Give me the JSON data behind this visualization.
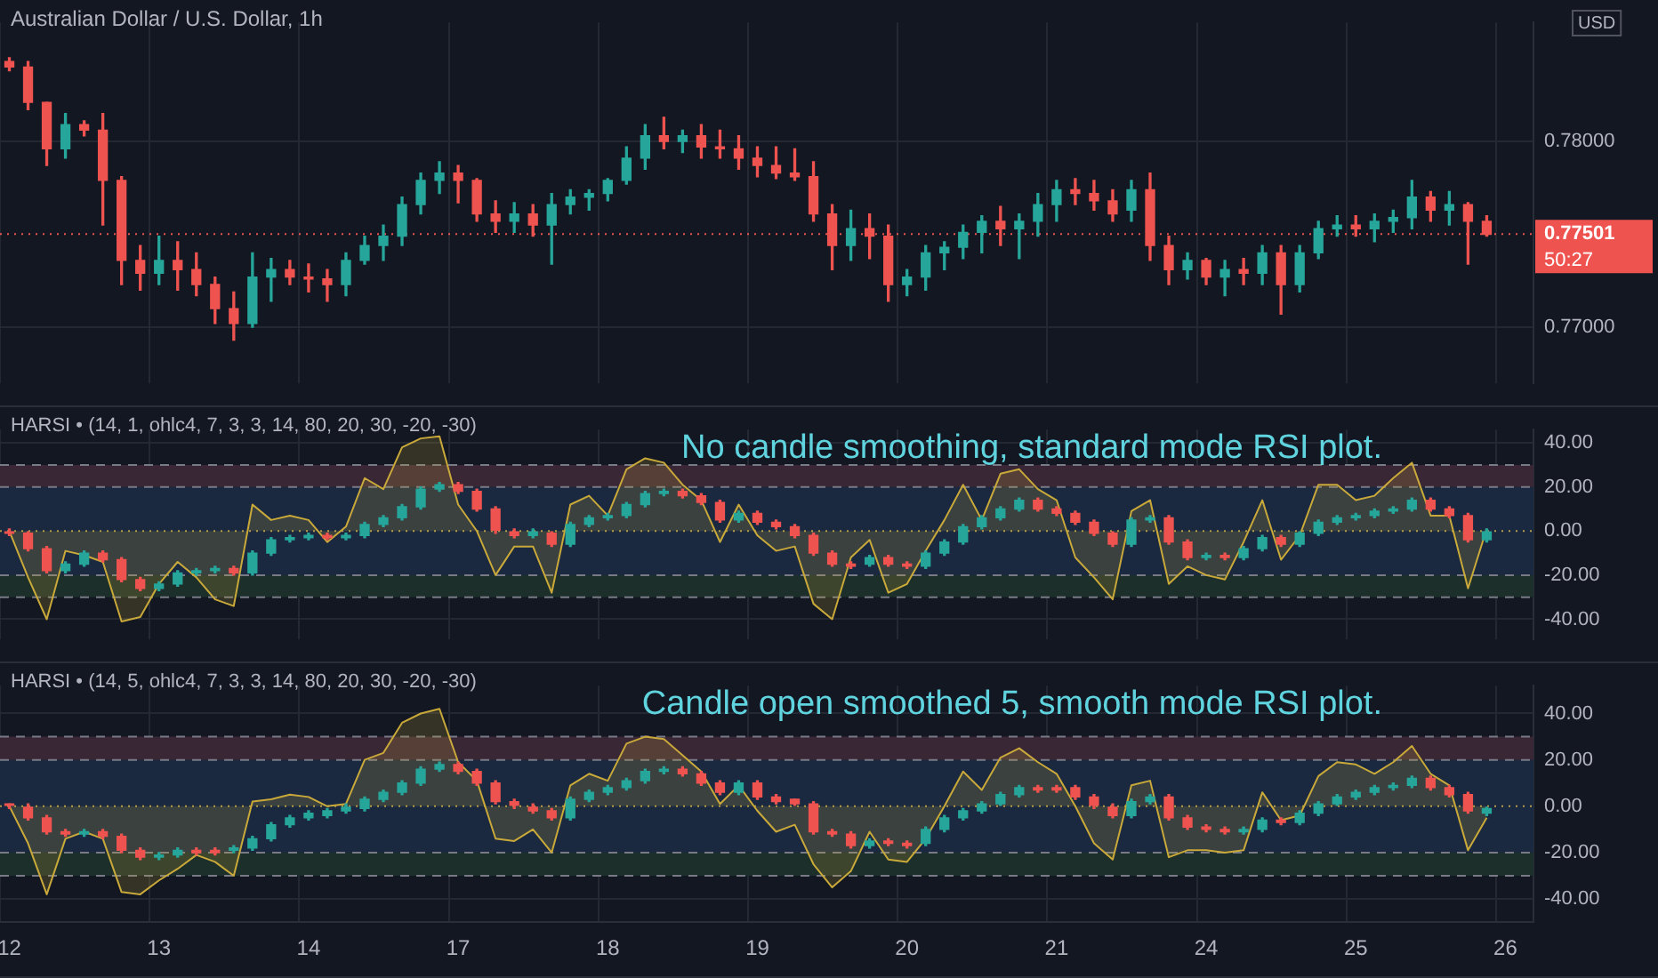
{
  "chart_data": [
    {
      "type": "candlestick",
      "title": "Australian Dollar / U.S. Dollar, 1h",
      "categories": [
        "12",
        null,
        null,
        null,
        null,
        null,
        null,
        null,
        "13",
        null,
        null,
        null,
        null,
        null,
        null,
        null,
        "14",
        null,
        null,
        null,
        null,
        null,
        null,
        null,
        "17",
        null,
        null,
        null,
        null,
        null,
        null,
        null,
        "18",
        null,
        null,
        null,
        null,
        null,
        null,
        null,
        "19",
        null,
        null,
        null,
        null,
        null,
        null,
        null,
        "20",
        null,
        null,
        null,
        null,
        null,
        null,
        null,
        "21",
        null,
        null,
        null,
        null,
        null,
        null,
        null,
        "24",
        null,
        null,
        null,
        null,
        null,
        null,
        null,
        "25",
        null,
        null,
        null,
        null,
        null,
        null,
        null,
        "26",
        null
      ],
      "ohlc": [
        [
          0.7843,
          0.7845,
          0.7838,
          0.784
        ],
        [
          0.784,
          0.7843,
          0.7817,
          0.7821
        ],
        [
          0.7821,
          0.7821,
          0.7787,
          0.7796
        ],
        [
          0.7796,
          0.7815,
          0.7791,
          0.7809
        ],
        [
          0.7809,
          0.7811,
          0.7803,
          0.7806
        ],
        [
          0.7806,
          0.7815,
          0.7755,
          0.7779
        ],
        [
          0.7779,
          0.7781,
          0.7723,
          0.7736
        ],
        [
          0.7736,
          0.7744,
          0.772,
          0.7729
        ],
        [
          0.7729,
          0.7749,
          0.7723,
          0.7736
        ],
        [
          0.7736,
          0.7746,
          0.772,
          0.7731
        ],
        [
          0.7731,
          0.774,
          0.7717,
          0.7723
        ],
        [
          0.7723,
          0.7727,
          0.7702,
          0.771
        ],
        [
          0.771,
          0.7719,
          0.7693,
          0.7702
        ],
        [
          0.7702,
          0.774,
          0.77,
          0.7727
        ],
        [
          0.7727,
          0.7737,
          0.7714,
          0.7731
        ],
        [
          0.7731,
          0.7736,
          0.7723,
          0.7727
        ],
        [
          0.7727,
          0.7734,
          0.7719,
          0.7726
        ],
        [
          0.7726,
          0.7731,
          0.7714,
          0.7723
        ],
        [
          0.7723,
          0.774,
          0.7717,
          0.7736
        ],
        [
          0.7736,
          0.7749,
          0.7734,
          0.7744
        ],
        [
          0.7744,
          0.7755,
          0.7736,
          0.7749
        ],
        [
          0.7749,
          0.777,
          0.7744,
          0.7766
        ],
        [
          0.7766,
          0.7783,
          0.7761,
          0.7779
        ],
        [
          0.7779,
          0.7789,
          0.7772,
          0.7783
        ],
        [
          0.7783,
          0.7787,
          0.7767,
          0.7779
        ],
        [
          0.7779,
          0.778,
          0.7757,
          0.7761
        ],
        [
          0.7761,
          0.7768,
          0.7751,
          0.7757
        ],
        [
          0.7757,
          0.7767,
          0.7751,
          0.7761
        ],
        [
          0.7761,
          0.7766,
          0.7749,
          0.7755
        ],
        [
          0.7755,
          0.7772,
          0.7734,
          0.7766
        ],
        [
          0.7766,
          0.7774,
          0.7761,
          0.777
        ],
        [
          0.777,
          0.7774,
          0.7763,
          0.7772
        ],
        [
          0.7772,
          0.778,
          0.7768,
          0.7779
        ],
        [
          0.7779,
          0.7797,
          0.7777,
          0.7791
        ],
        [
          0.7791,
          0.7809,
          0.7785,
          0.7803
        ],
        [
          0.7803,
          0.7813,
          0.7796,
          0.78
        ],
        [
          0.78,
          0.7806,
          0.7794,
          0.7803
        ],
        [
          0.7803,
          0.7809,
          0.7791,
          0.7797
        ],
        [
          0.7797,
          0.7806,
          0.7791,
          0.7796
        ],
        [
          0.7796,
          0.7803,
          0.7785,
          0.7791
        ],
        [
          0.7791,
          0.7797,
          0.7781,
          0.7787
        ],
        [
          0.7787,
          0.7797,
          0.778,
          0.7783
        ],
        [
          0.7783,
          0.7796,
          0.7779,
          0.7781
        ],
        [
          0.7781,
          0.7789,
          0.7757,
          0.7761
        ],
        [
          0.7761,
          0.7766,
          0.7731,
          0.7744
        ],
        [
          0.7744,
          0.7763,
          0.7736,
          0.7753
        ],
        [
          0.7753,
          0.7761,
          0.7737,
          0.7749
        ],
        [
          0.7749,
          0.7755,
          0.7714,
          0.7723
        ],
        [
          0.7723,
          0.7731,
          0.7717,
          0.7727
        ],
        [
          0.7727,
          0.7744,
          0.772,
          0.774
        ],
        [
          0.774,
          0.7746,
          0.7731,
          0.7743
        ],
        [
          0.7743,
          0.7755,
          0.7737,
          0.7751
        ],
        [
          0.7751,
          0.776,
          0.774,
          0.7757
        ],
        [
          0.7757,
          0.7765,
          0.7744,
          0.7753
        ],
        [
          0.7753,
          0.7761,
          0.7737,
          0.7757
        ],
        [
          0.7757,
          0.7772,
          0.7749,
          0.7766
        ],
        [
          0.7766,
          0.7779,
          0.7757,
          0.7774
        ],
        [
          0.7774,
          0.778,
          0.7766,
          0.7772
        ],
        [
          0.7772,
          0.7779,
          0.7763,
          0.7768
        ],
        [
          0.7768,
          0.7774,
          0.7757,
          0.7761
        ],
        [
          0.7763,
          0.7779,
          0.7757,
          0.7774
        ],
        [
          0.7774,
          0.7783,
          0.7736,
          0.7744
        ],
        [
          0.7744,
          0.7749,
          0.7723,
          0.7731
        ],
        [
          0.7731,
          0.774,
          0.7726,
          0.7736
        ],
        [
          0.7736,
          0.7737,
          0.7723,
          0.7727
        ],
        [
          0.7727,
          0.7736,
          0.7717,
          0.7731
        ],
        [
          0.7731,
          0.7737,
          0.7723,
          0.7729
        ],
        [
          0.7729,
          0.7744,
          0.7723,
          0.774
        ],
        [
          0.774,
          0.7744,
          0.7707,
          0.7723
        ],
        [
          0.7723,
          0.7744,
          0.7719,
          0.774
        ],
        [
          0.774,
          0.7757,
          0.7737,
          0.7753
        ],
        [
          0.7753,
          0.776,
          0.7749,
          0.7755
        ],
        [
          0.7755,
          0.776,
          0.7749,
          0.7753
        ],
        [
          0.7753,
          0.7761,
          0.7746,
          0.7757
        ],
        [
          0.7757,
          0.7763,
          0.7751,
          0.7759
        ],
        [
          0.7759,
          0.7779,
          0.7753,
          0.777
        ],
        [
          0.777,
          0.7773,
          0.7757,
          0.7763
        ],
        [
          0.7763,
          0.7773,
          0.7755,
          0.7766
        ],
        [
          0.7766,
          0.7767,
          0.7734,
          0.7757
        ],
        [
          0.7757,
          0.776,
          0.7749,
          0.775
        ],
        null,
        null
      ],
      "colors": [
        "#ef5350",
        "#ef5350",
        "#ef5350",
        "#26a69a",
        "#ef5350",
        "#ef5350",
        "#ef5350",
        "#ef5350",
        "#26a69a",
        "#ef5350",
        "#ef5350",
        "#ef5350",
        "#ef5350",
        "#26a69a",
        "#26a69a",
        "#ef5350",
        "#ef5350",
        "#ef5350",
        "#26a69a",
        "#26a69a",
        "#26a69a",
        "#26a69a",
        "#26a69a",
        "#26a69a",
        "#ef5350",
        "#ef5350",
        "#ef5350",
        "#26a69a",
        "#ef5350",
        "#26a69a",
        "#26a69a",
        "#26a69a",
        "#26a69a",
        "#26a69a",
        "#26a69a",
        "#ef5350",
        "#26a69a",
        "#ef5350",
        "#ef5350",
        "#ef5350",
        "#ef5350",
        "#ef5350",
        "#ef5350",
        "#ef5350",
        "#ef5350",
        "#26a69a",
        "#ef5350",
        "#ef5350",
        "#26a69a",
        "#26a69a",
        "#26a69a",
        "#26a69a",
        "#26a69a",
        "#ef5350",
        "#26a69a",
        "#26a69a",
        "#26a69a",
        "#ef5350",
        "#ef5350",
        "#ef5350",
        "#26a69a",
        "#ef5350",
        "#ef5350",
        "#26a69a",
        "#ef5350",
        "#26a69a",
        "#ef5350",
        "#26a69a",
        "#ef5350",
        "#26a69a",
        "#26a69a",
        "#26a69a",
        "#ef5350",
        "#26a69a",
        "#26a69a",
        "#26a69a",
        "#ef5350",
        "#26a69a",
        "#ef5350",
        "#ef5350",
        null,
        null
      ],
      "ylim": [
        0.767,
        0.7864
      ],
      "yticks": [
        {
          "value": 0.77,
          "label": "0.77000"
        },
        {
          "value": 0.78,
          "label": "0.78000"
        }
      ],
      "ref_lines": [
        {
          "axis": "y",
          "value": 0.77501,
          "label": "0.77501",
          "color": "#ef5350",
          "line_style": "dotted"
        }
      ],
      "annotations": [
        "USD",
        "50:27"
      ],
      "grid": true,
      "tick_labels": "y",
      "legend": false
    },
    {
      "type": "candlestick",
      "title": "HARSI • (14, 1, ohlc4, 7, 3, 3, 14, 80, 20, 30, -20, -30)",
      "categories": [
        "12",
        null,
        null,
        null,
        null,
        null,
        null,
        null,
        "13",
        null,
        null,
        null,
        null,
        null,
        null,
        null,
        "14",
        null,
        null,
        null,
        null,
        null,
        null,
        null,
        "17",
        null,
        null,
        null,
        null,
        null,
        null,
        null,
        "18",
        null,
        null,
        null,
        null,
        null,
        null,
        null,
        "19",
        null,
        null,
        null,
        null,
        null,
        null,
        null,
        "20",
        null,
        null,
        null,
        null,
        null,
        null,
        null,
        "21",
        null,
        null,
        null,
        null,
        null,
        null,
        null,
        "24",
        null,
        null,
        null,
        null,
        null,
        null,
        null,
        "25",
        null,
        null,
        null,
        null,
        null,
        null,
        null,
        "26",
        null
      ],
      "ohlc": [
        [
          0,
          1,
          -2,
          -1
        ],
        [
          -1,
          0,
          -9,
          -8
        ],
        [
          -8,
          -7,
          -19,
          -18
        ],
        [
          -18,
          -14,
          -19,
          -15
        ],
        [
          -15,
          -9,
          -16,
          -10
        ],
        [
          -10,
          -9,
          -14,
          -13
        ],
        [
          -13,
          -12,
          -23,
          -22
        ],
        [
          -22,
          -21,
          -27,
          -26
        ],
        [
          -26,
          -23,
          -27,
          -24
        ],
        [
          -24,
          -18,
          -25,
          -19
        ],
        [
          -19,
          -17,
          -20,
          -18
        ],
        [
          -18,
          -16,
          -19,
          -17
        ],
        [
          -17,
          -16,
          -20,
          -19
        ],
        [
          -19,
          -9,
          -20,
          -10
        ],
        [
          -10,
          -3,
          -11,
          -4
        ],
        [
          -4,
          -2,
          -5,
          -3
        ],
        [
          -3,
          -1,
          -4,
          -2
        ],
        [
          -2,
          -1,
          -4,
          -3
        ],
        [
          -3,
          -1,
          -4,
          -2
        ],
        [
          -2,
          4,
          -3,
          3
        ],
        [
          3,
          7,
          2,
          6
        ],
        [
          6,
          12,
          5,
          11
        ],
        [
          11,
          20,
          10,
          19
        ],
        [
          19,
          22,
          18,
          21
        ],
        [
          21,
          22,
          17,
          18
        ],
        [
          18,
          19,
          9,
          10
        ],
        [
          10,
          11,
          -1,
          0
        ],
        [
          0,
          1,
          -3,
          -2
        ],
        [
          -2,
          1,
          -3,
          0
        ],
        [
          -1,
          0,
          -7,
          -6
        ],
        [
          -6,
          4,
          -7,
          3
        ],
        [
          3,
          7,
          2,
          6
        ],
        [
          6,
          8,
          5,
          7
        ],
        [
          7,
          13,
          6,
          12
        ],
        [
          12,
          18,
          11,
          17
        ],
        [
          17,
          19,
          16,
          18
        ],
        [
          18,
          19,
          15,
          16
        ],
        [
          16,
          17,
          12,
          13
        ],
        [
          13,
          14,
          4,
          5
        ],
        [
          5,
          9,
          4,
          8
        ],
        [
          8,
          9,
          3,
          4
        ],
        [
          4,
          5,
          1,
          2
        ],
        [
          2,
          3,
          -3,
          -2
        ],
        [
          -2,
          -1,
          -11,
          -10
        ],
        [
          -10,
          -9,
          -16,
          -15
        ],
        [
          -15,
          -14,
          -17,
          -16
        ],
        [
          -15,
          -11,
          -16,
          -12
        ],
        [
          -12,
          -11,
          -16,
          -15
        ],
        [
          -15,
          -14,
          -17,
          -16
        ],
        [
          -16,
          -9,
          -17,
          -10
        ],
        [
          -10,
          -4,
          -11,
          -5
        ],
        [
          -5,
          3,
          -6,
          2
        ],
        [
          2,
          7,
          1,
          6
        ],
        [
          6,
          11,
          5,
          10
        ],
        [
          10,
          15,
          9,
          14
        ],
        [
          14,
          15,
          9,
          10
        ],
        [
          10,
          11,
          7,
          8
        ],
        [
          8,
          9,
          3,
          4
        ],
        [
          4,
          5,
          -2,
          -1
        ],
        [
          -1,
          0,
          -7,
          -6
        ],
        [
          -6,
          6,
          -7,
          5
        ],
        [
          5,
          7,
          4,
          6
        ],
        [
          6,
          7,
          -6,
          -5
        ],
        [
          -5,
          -4,
          -13,
          -12
        ],
        [
          -12,
          -10,
          -13,
          -11
        ],
        [
          -11,
          -10,
          -13,
          -12
        ],
        [
          -12,
          -7,
          -13,
          -8
        ],
        [
          -8,
          -2,
          -9,
          -3
        ],
        [
          -3,
          -2,
          -7,
          -6
        ],
        [
          -6,
          0,
          -7,
          -1
        ],
        [
          -1,
          5,
          -2,
          4
        ],
        [
          4,
          7,
          3,
          6
        ],
        [
          6,
          8,
          5,
          7
        ],
        [
          7,
          10,
          6,
          9
        ],
        [
          9,
          11,
          8,
          10
        ],
        [
          10,
          15,
          9,
          14
        ],
        [
          14,
          15,
          9,
          10
        ],
        [
          10,
          11,
          6,
          7
        ],
        [
          7,
          8,
          -5,
          -4
        ],
        [
          -4,
          1,
          -5,
          0
        ],
        null,
        null
      ],
      "colors": [
        "#ef5350",
        "#ef5350",
        "#ef5350",
        "#26a69a",
        "#26a69a",
        "#ef5350",
        "#ef5350",
        "#ef5350",
        "#26a69a",
        "#26a69a",
        "#26a69a",
        "#26a69a",
        "#ef5350",
        "#26a69a",
        "#26a69a",
        "#26a69a",
        "#26a69a",
        "#ef5350",
        "#26a69a",
        "#26a69a",
        "#26a69a",
        "#26a69a",
        "#26a69a",
        "#26a69a",
        "#ef5350",
        "#ef5350",
        "#ef5350",
        "#ef5350",
        "#26a69a",
        "#ef5350",
        "#26a69a",
        "#26a69a",
        "#26a69a",
        "#26a69a",
        "#26a69a",
        "#26a69a",
        "#ef5350",
        "#ef5350",
        "#ef5350",
        "#26a69a",
        "#ef5350",
        "#ef5350",
        "#ef5350",
        "#ef5350",
        "#ef5350",
        "#ef5350",
        "#26a69a",
        "#ef5350",
        "#ef5350",
        "#26a69a",
        "#26a69a",
        "#26a69a",
        "#26a69a",
        "#26a69a",
        "#26a69a",
        "#ef5350",
        "#ef5350",
        "#ef5350",
        "#ef5350",
        "#ef5350",
        "#26a69a",
        "#26a69a",
        "#ef5350",
        "#ef5350",
        "#26a69a",
        "#ef5350",
        "#26a69a",
        "#26a69a",
        "#ef5350",
        "#26a69a",
        "#26a69a",
        "#26a69a",
        "#26a69a",
        "#26a69a",
        "#26a69a",
        "#26a69a",
        "#ef5350",
        "#ef5350",
        "#ef5350",
        "#26a69a",
        null,
        null
      ],
      "series": [
        {
          "type": "area",
          "color": "#c9a93a",
          "values": [
            0,
            -21,
            -40,
            -9,
            -11,
            -14,
            -41,
            -39,
            -24,
            -14,
            -21,
            -31,
            -34,
            12,
            5,
            7,
            5,
            -5,
            2,
            24,
            19,
            38,
            42,
            43,
            12,
            0,
            -20,
            -7,
            -7,
            -28,
            12,
            16,
            7,
            28,
            33,
            31,
            21,
            14,
            -5,
            12,
            -2,
            -9,
            -7,
            -33,
            -40,
            -12,
            -4,
            -28,
            -24,
            -9,
            5,
            21,
            5,
            26,
            28,
            19,
            14,
            -12,
            -21,
            -31,
            9,
            14,
            -24,
            -16,
            -20,
            -22,
            -5,
            14,
            -13,
            -2,
            21,
            21,
            14,
            16,
            24,
            31,
            7,
            7,
            -26,
            1,
            null,
            null
          ]
        }
      ],
      "bands": [
        {
          "axis": "y",
          "from": 20,
          "to": 30,
          "color": "#3a2735"
        },
        {
          "axis": "y",
          "from": -20,
          "to": 20,
          "color": "#1b2940"
        },
        {
          "axis": "y",
          "from": -30,
          "to": -20,
          "color": "#1d2f2a"
        }
      ],
      "ref_lines": [
        {
          "axis": "y",
          "value": 30,
          "color": "#787b86",
          "line_style": "dashed"
        },
        {
          "axis": "y",
          "value": 20,
          "color": "#787b86",
          "line_style": "dashed"
        },
        {
          "axis": "y",
          "value": 0,
          "color": "#b39b4a",
          "line_style": "dotted"
        },
        {
          "axis": "y",
          "value": -20,
          "color": "#787b86",
          "line_style": "dashed"
        },
        {
          "axis": "y",
          "value": -30,
          "color": "#787b86",
          "line_style": "dashed"
        }
      ],
      "ylim": [
        -49,
        46
      ],
      "yticks": [
        {
          "value": -40,
          "label": "-40.00"
        },
        {
          "value": -20,
          "label": "-20.00"
        },
        {
          "value": 0,
          "label": "0.00"
        },
        {
          "value": 20,
          "label": "20.00"
        },
        {
          "value": 40,
          "label": "40.00"
        }
      ],
      "annotations": [
        "No candle smoothing, standard mode RSI plot."
      ],
      "grid": true,
      "tick_labels": "y",
      "legend": false
    },
    {
      "type": "candlestick",
      "title": "HARSI • (14, 5, ohlc4, 7, 3, 3, 14, 80, 20, 30, -20, -30)",
      "categories": [
        "12",
        null,
        null,
        null,
        null,
        null,
        null,
        null,
        "13",
        null,
        null,
        null,
        null,
        null,
        null,
        null,
        "14",
        null,
        null,
        null,
        null,
        null,
        null,
        null,
        "17",
        null,
        null,
        null,
        null,
        null,
        null,
        null,
        "18",
        null,
        null,
        null,
        null,
        null,
        null,
        null,
        "19",
        null,
        null,
        null,
        null,
        null,
        null,
        null,
        "20",
        null,
        null,
        null,
        null,
        null,
        null,
        null,
        "21",
        null,
        null,
        null,
        null,
        null,
        null,
        null,
        "24",
        null,
        null,
        null,
        null,
        null,
        null,
        null,
        "25",
        null,
        null,
        null,
        null,
        null,
        null,
        null,
        "26",
        null
      ],
      "ohlc": [
        [
          1,
          1,
          -1,
          0
        ],
        [
          0,
          1,
          -6,
          -5
        ],
        [
          -5,
          -4,
          -12,
          -11
        ],
        [
          -11,
          -10,
          -13,
          -12
        ],
        [
          -12,
          -10,
          -13,
          -11
        ],
        [
          -11,
          -10,
          -14,
          -13
        ],
        [
          -13,
          -12,
          -20,
          -19
        ],
        [
          -19,
          -18,
          -23,
          -22
        ],
        [
          -22,
          -20,
          -23,
          -21
        ],
        [
          -21,
          -18,
          -22,
          -19
        ],
        [
          -19,
          -18,
          -21,
          -20
        ],
        [
          -19,
          -18,
          -21,
          -20
        ],
        [
          -19,
          -17,
          -20,
          -18
        ],
        [
          -18,
          -13,
          -19,
          -14
        ],
        [
          -14,
          -7,
          -15,
          -8
        ],
        [
          -8,
          -4,
          -9,
          -5
        ],
        [
          -5,
          -2,
          -6,
          -3
        ],
        [
          -4,
          -1,
          -5,
          -2
        ],
        [
          -2,
          1,
          -3,
          0
        ],
        [
          -1,
          4,
          -2,
          3
        ],
        [
          3,
          7,
          2,
          6
        ],
        [
          6,
          11,
          5,
          10
        ],
        [
          10,
          17,
          9,
          16
        ],
        [
          16,
          19,
          15,
          18
        ],
        [
          18,
          19,
          14,
          15
        ],
        [
          15,
          16,
          9,
          10
        ],
        [
          10,
          11,
          1,
          2
        ],
        [
          2,
          3,
          -1,
          0
        ],
        [
          0,
          1,
          -3,
          -2
        ],
        [
          -2,
          -1,
          -6,
          -5
        ],
        [
          -5,
          4,
          -6,
          3
        ],
        [
          3,
          7,
          2,
          6
        ],
        [
          6,
          9,
          5,
          8
        ],
        [
          8,
          12,
          7,
          11
        ],
        [
          11,
          16,
          10,
          15
        ],
        [
          15,
          17,
          14,
          16
        ],
        [
          16,
          17,
          13,
          14
        ],
        [
          14,
          15,
          9,
          10
        ],
        [
          10,
          11,
          5,
          6
        ],
        [
          6,
          11,
          5,
          10
        ],
        [
          10,
          11,
          3,
          4
        ],
        [
          4,
          5,
          1,
          2
        ],
        [
          3,
          3,
          0,
          1
        ],
        [
          1,
          2,
          -12,
          -11
        ],
        [
          -11,
          -10,
          -13,
          -12
        ],
        [
          -12,
          -11,
          -18,
          -17
        ],
        [
          -17,
          -14,
          -18,
          -15
        ],
        [
          -15,
          -14,
          -17,
          -16
        ],
        [
          -16,
          -15,
          -18,
          -17
        ],
        [
          -16,
          -9,
          -17,
          -10
        ],
        [
          -10,
          -4,
          -11,
          -5
        ],
        [
          -5,
          -1,
          -6,
          -2
        ],
        [
          -2,
          2,
          -3,
          1
        ],
        [
          1,
          6,
          0,
          5
        ],
        [
          5,
          9,
          4,
          8
        ],
        [
          8,
          9,
          6,
          7
        ],
        [
          8,
          9,
          6,
          7
        ],
        [
          8,
          9,
          3,
          4
        ],
        [
          4,
          5,
          -1,
          0
        ],
        [
          0,
          1,
          -5,
          -4
        ],
        [
          -4,
          3,
          -5,
          2
        ],
        [
          2,
          5,
          1,
          4
        ],
        [
          4,
          5,
          -6,
          -5
        ],
        [
          -5,
          -4,
          -10,
          -9
        ],
        [
          -9,
          -8,
          -11,
          -10
        ],
        [
          -10,
          -9,
          -12,
          -11
        ],
        [
          -11,
          -9,
          -12,
          -10
        ],
        [
          -10,
          -5,
          -11,
          -6
        ],
        [
          -6,
          -5,
          -8,
          -7
        ],
        [
          -7,
          -2,
          -8,
          -3
        ],
        [
          -3,
          2,
          -4,
          1
        ],
        [
          1,
          5,
          0,
          4
        ],
        [
          4,
          7,
          3,
          6
        ],
        [
          6,
          9,
          5,
          8
        ],
        [
          8,
          10,
          7,
          9
        ],
        [
          9,
          13,
          8,
          12
        ],
        [
          12,
          13,
          7,
          8
        ],
        [
          8,
          9,
          4,
          5
        ],
        [
          5,
          6,
          -3,
          -2
        ],
        [
          -3,
          0,
          -4,
          -1
        ],
        null,
        null
      ],
      "colors": [
        "#ef5350",
        "#ef5350",
        "#ef5350",
        "#ef5350",
        "#26a69a",
        "#ef5350",
        "#ef5350",
        "#ef5350",
        "#26a69a",
        "#26a69a",
        "#ef5350",
        "#ef5350",
        "#26a69a",
        "#26a69a",
        "#26a69a",
        "#26a69a",
        "#26a69a",
        "#26a69a",
        "#26a69a",
        "#26a69a",
        "#26a69a",
        "#26a69a",
        "#26a69a",
        "#26a69a",
        "#ef5350",
        "#ef5350",
        "#ef5350",
        "#ef5350",
        "#ef5350",
        "#ef5350",
        "#26a69a",
        "#26a69a",
        "#26a69a",
        "#26a69a",
        "#26a69a",
        "#26a69a",
        "#ef5350",
        "#ef5350",
        "#ef5350",
        "#26a69a",
        "#ef5350",
        "#ef5350",
        "#ef5350",
        "#ef5350",
        "#ef5350",
        "#ef5350",
        "#26a69a",
        "#ef5350",
        "#ef5350",
        "#26a69a",
        "#26a69a",
        "#26a69a",
        "#26a69a",
        "#26a69a",
        "#26a69a",
        "#ef5350",
        "#ef5350",
        "#ef5350",
        "#ef5350",
        "#ef5350",
        "#26a69a",
        "#26a69a",
        "#ef5350",
        "#ef5350",
        "#ef5350",
        "#ef5350",
        "#26a69a",
        "#26a69a",
        "#ef5350",
        "#26a69a",
        "#26a69a",
        "#26a69a",
        "#26a69a",
        "#26a69a",
        "#26a69a",
        "#26a69a",
        "#ef5350",
        "#ef5350",
        "#ef5350",
        "#26a69a",
        null,
        null
      ],
      "series": [
        {
          "type": "area",
          "color": "#c9a93a",
          "values": [
            0,
            -16,
            -38,
            -14,
            -11,
            -14,
            -37,
            -38,
            -32,
            -27,
            -21,
            -24,
            -30,
            2,
            3,
            5,
            4,
            0,
            1,
            20,
            23,
            36,
            40,
            42,
            19,
            11,
            -14,
            -15,
            -10,
            -20,
            9,
            14,
            11,
            27,
            30,
            29,
            22,
            15,
            1,
            9,
            -2,
            -11,
            -8,
            -25,
            -35,
            -28,
            -11,
            -23,
            -24,
            -14,
            0,
            15,
            7,
            21,
            25,
            19,
            14,
            0,
            -16,
            -23,
            9,
            11,
            -22,
            -19,
            -19,
            -20,
            -19,
            6,
            -6,
            -4,
            13,
            19,
            18,
            14,
            19,
            26,
            14,
            9,
            -19,
            -5,
            null,
            null
          ]
        }
      ],
      "bands": [
        {
          "axis": "y",
          "from": 20,
          "to": 30,
          "color": "#3a2735"
        },
        {
          "axis": "y",
          "from": -20,
          "to": 20,
          "color": "#1b2940"
        },
        {
          "axis": "y",
          "from": -30,
          "to": -20,
          "color": "#1d2f2a"
        }
      ],
      "ref_lines": [
        {
          "axis": "y",
          "value": 30,
          "color": "#787b86",
          "line_style": "dashed"
        },
        {
          "axis": "y",
          "value": 20,
          "color": "#787b86",
          "line_style": "dashed"
        },
        {
          "axis": "y",
          "value": 0,
          "color": "#b39b4a",
          "line_style": "dotted"
        },
        {
          "axis": "y",
          "value": -20,
          "color": "#787b86",
          "line_style": "dashed"
        },
        {
          "axis": "y",
          "value": -30,
          "color": "#787b86",
          "line_style": "dashed"
        }
      ],
      "ylim": [
        -50,
        52
      ],
      "yticks": [
        {
          "value": -40,
          "label": "-40.00"
        },
        {
          "value": -20,
          "label": "-20.00"
        },
        {
          "value": 0,
          "label": "0.00"
        },
        {
          "value": 20,
          "label": "20.00"
        },
        {
          "value": 40,
          "label": "40.00"
        }
      ],
      "annotations": [
        "Candle open smoothed 5, smooth mode RSI plot."
      ],
      "grid": true,
      "legend": false
    }
  ]
}
